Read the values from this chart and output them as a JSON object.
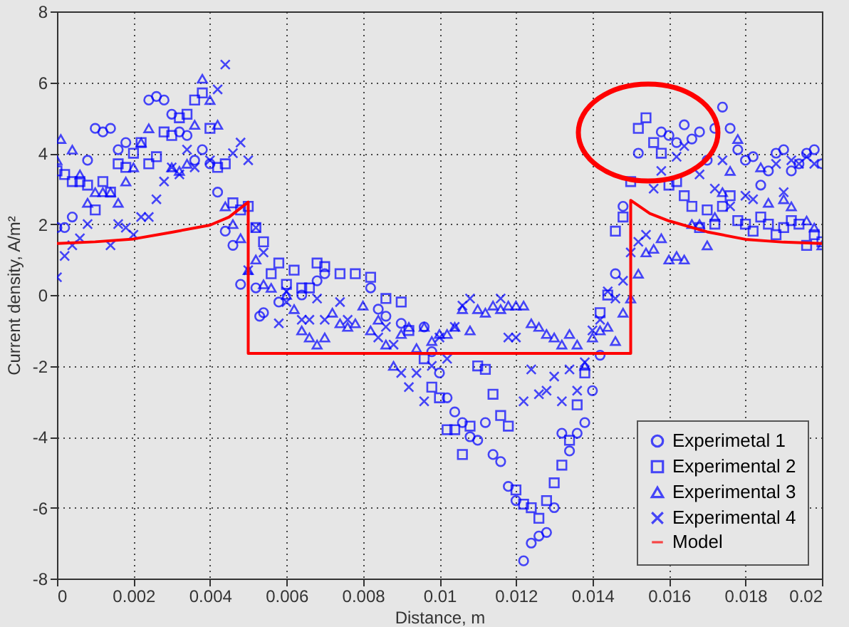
{
  "chart_data": {
    "type": "scatter",
    "xlabel": "Distance, m",
    "ylabel": "Current density, A/m²",
    "xlim": [
      0,
      0.02
    ],
    "ylim": [
      -8,
      8
    ],
    "xticks": [
      0,
      0.002,
      0.004,
      0.006,
      0.008,
      0.01,
      0.012,
      0.014,
      0.016,
      0.018,
      0.02
    ],
    "yticks": [
      -8,
      -6,
      -4,
      -2,
      0,
      2,
      4,
      6,
      8
    ],
    "grid": true,
    "legend": "bottom right",
    "series": [
      {
        "name": "Experimetal 1",
        "marker": "circle",
        "color": "#0000ff",
        "x": [
          0,
          0.0002,
          0.0004,
          0.0008,
          0.001,
          0.0012,
          0.0014,
          0.0016,
          0.0018,
          0.0024,
          0.0026,
          0.0028,
          0.003,
          0.0032,
          0.0034,
          0.0036,
          0.0038,
          0.004,
          0.0042,
          0.0044,
          0.0046,
          0.0048,
          0.0052,
          0.0053,
          0.0054,
          0.0058,
          0.0064,
          0.0068,
          0.007,
          0.0082,
          0.0084,
          0.0086,
          0.009,
          0.0096,
          0.0098,
          0.01,
          0.0102,
          0.0104,
          0.0106,
          0.0108,
          0.011,
          0.0112,
          0.0114,
          0.0116,
          0.0118,
          0.012,
          0.0122,
          0.0124,
          0.0126,
          0.0128,
          0.013,
          0.0132,
          0.0134,
          0.0136,
          0.0138,
          0.014,
          0.0142,
          0.0146,
          0.0148,
          0.0152,
          0.0158,
          0.016,
          0.0162,
          0.0164,
          0.0166,
          0.0168,
          0.017,
          0.0172,
          0.0174,
          0.0176,
          0.0178,
          0.018,
          0.0182,
          0.0184,
          0.0186,
          0.0188,
          0.019,
          0.0192,
          0.0194,
          0.0196,
          0.0198,
          0.02
        ],
        "values": [
          1.9,
          1.9,
          2.2,
          3.8,
          4.7,
          4.6,
          4.7,
          4.1,
          4.3,
          5.5,
          5.6,
          5.5,
          5.1,
          4.6,
          4.5,
          3.8,
          4.1,
          3.7,
          2.9,
          1.8,
          1.4,
          0.3,
          0.2,
          -0.6,
          -0.5,
          -0.2,
          0,
          0.4,
          0.6,
          0.2,
          -0.4,
          -0.6,
          -0.8,
          -0.9,
          -1.6,
          -2.2,
          -2.9,
          -3.3,
          -3.6,
          -4,
          -4.1,
          -3.6,
          -4.5,
          -4.7,
          -5.4,
          -5.8,
          -7.5,
          -7,
          -6.8,
          -6.7,
          -6,
          -3.9,
          -4.4,
          -3.9,
          -3.6,
          -2.7,
          -1.7,
          0.6,
          2.5,
          4,
          4.6,
          4.5,
          4.3,
          4.8,
          4.4,
          4.6,
          3.8,
          4.7,
          5.3,
          4.7,
          4.1,
          3.8,
          3.9,
          3.1,
          3.5,
          4,
          4.1,
          3.5,
          3.7,
          4,
          4.1,
          3.7
        ]
      },
      {
        "name": "Experimental 2",
        "marker": "square",
        "color": "#0000ff",
        "x": [
          0,
          0.0002,
          0.0004,
          0.0006,
          0.0008,
          0.001,
          0.0012,
          0.0014,
          0.0016,
          0.0018,
          0.002,
          0.0022,
          0.0024,
          0.0026,
          0.0028,
          0.003,
          0.0032,
          0.0034,
          0.0036,
          0.0038,
          0.004,
          0.0042,
          0.0044,
          0.0046,
          0.0048,
          0.005,
          0.0052,
          0.0054,
          0.0056,
          0.0058,
          0.006,
          0.0062,
          0.0064,
          0.0066,
          0.0068,
          0.007,
          0.0074,
          0.0078,
          0.0082,
          0.0086,
          0.009,
          0.0092,
          0.0096,
          0.0098,
          0.01,
          0.0102,
          0.0104,
          0.0106,
          0.0108,
          0.011,
          0.0112,
          0.0114,
          0.0116,
          0.0118,
          0.012,
          0.0122,
          0.0124,
          0.0126,
          0.0128,
          0.013,
          0.0132,
          0.0134,
          0.0136,
          0.0138,
          0.0142,
          0.0144,
          0.0146,
          0.0148,
          0.015,
          0.0152,
          0.0154,
          0.0156,
          0.0158,
          0.016,
          0.0162,
          0.0164,
          0.0166,
          0.0168,
          0.017,
          0.0172,
          0.0174,
          0.0176,
          0.0178,
          0.018,
          0.0182,
          0.0184,
          0.0186,
          0.0188,
          0.019,
          0.0192,
          0.0194,
          0.0196,
          0.0198,
          0.02
        ],
        "values": [
          3.5,
          3.4,
          3.2,
          3.2,
          3.1,
          2.4,
          3.2,
          2.9,
          3.7,
          3.6,
          4,
          4.3,
          3.7,
          3.9,
          4.6,
          4.5,
          5,
          5.1,
          5.5,
          5.7,
          4.7,
          3.6,
          3.7,
          2.6,
          2.4,
          2.5,
          1.9,
          1.5,
          0.6,
          0.9,
          0.3,
          0.7,
          0.2,
          0.2,
          0.9,
          0.8,
          0.6,
          0.6,
          0.5,
          -0.1,
          -0.2,
          -1,
          -1.8,
          -2.6,
          -2.9,
          -3.8,
          -3.8,
          -4.5,
          -3.7,
          -2,
          -2.1,
          -2.8,
          -3.4,
          -3.7,
          -5.5,
          -5.9,
          -6,
          -6.3,
          -5.8,
          -5.3,
          -4.8,
          -4.1,
          -3.1,
          -2.2,
          -0.5,
          0,
          1.8,
          2.2,
          3.2,
          4.7,
          5,
          4.3,
          4,
          3.1,
          3.2,
          2.8,
          2.5,
          1.9,
          2.4,
          2,
          2.5,
          2.8,
          2.1,
          2,
          1.8,
          2.2,
          2,
          1.7,
          1.9,
          2.1,
          2,
          1.4,
          1.7,
          1.5
        ]
      },
      {
        "name": "Experimental 3",
        "marker": "triangle",
        "color": "#0000ff",
        "x": [
          0,
          0.0001,
          0.0004,
          0.0006,
          0.0008,
          0.001,
          0.0012,
          0.0014,
          0.0016,
          0.0018,
          0.002,
          0.0022,
          0.0024,
          0.003,
          0.0032,
          0.0034,
          0.0036,
          0.0038,
          0.004,
          0.0042,
          0.0044,
          0.0046,
          0.0048,
          0.005,
          0.0052,
          0.0054,
          0.0056,
          0.006,
          0.0062,
          0.0064,
          0.0066,
          0.0068,
          0.007,
          0.0072,
          0.0074,
          0.0076,
          0.0078,
          0.008,
          0.0082,
          0.0084,
          0.0086,
          0.0088,
          0.009,
          0.0092,
          0.0094,
          0.0096,
          0.0098,
          0.01,
          0.0102,
          0.0104,
          0.0106,
          0.0108,
          0.011,
          0.0112,
          0.0114,
          0.0116,
          0.0118,
          0.012,
          0.0122,
          0.0124,
          0.0126,
          0.0128,
          0.013,
          0.0132,
          0.0134,
          0.0136,
          0.0138,
          0.014,
          0.0142,
          0.0144,
          0.0146,
          0.0148,
          0.015,
          0.0152,
          0.0154,
          0.0156,
          0.0158,
          0.016,
          0.0162,
          0.0164,
          0.0166,
          0.0168,
          0.017,
          0.0172,
          0.0174,
          0.0176,
          0.0178,
          0.0184,
          0.0186,
          0.019,
          0.0192,
          0.0196,
          0.0198,
          0.02
        ],
        "values": [
          3.8,
          4.4,
          4.1,
          3.4,
          2.6,
          2.9,
          2.9,
          2.9,
          2.6,
          3.2,
          3.6,
          4.3,
          4.7,
          3.6,
          3.5,
          3.7,
          4.8,
          6.1,
          5.5,
          4.8,
          2.5,
          2,
          1.6,
          0.7,
          1,
          0.3,
          0.2,
          0,
          -0.4,
          -1,
          -1.2,
          -1.4,
          -1.2,
          -0.5,
          -0.8,
          -0.9,
          -0.8,
          -0.3,
          -1,
          -0.7,
          -1.4,
          -2,
          -1.1,
          -0.9,
          -1.5,
          -0.9,
          -1.3,
          -1.1,
          -1.1,
          -0.9,
          -0.4,
          -1,
          -0.4,
          -0.5,
          -0.3,
          -0.4,
          -0.3,
          -0.3,
          -0.3,
          -0.8,
          -0.9,
          -1.1,
          -1.2,
          -1.4,
          -1.1,
          -1.4,
          -2,
          -1.2,
          -1,
          -0.9,
          -1.3,
          -0.5,
          -0.1,
          0.6,
          1.2,
          1.3,
          1.6,
          1,
          1.1,
          1,
          2,
          2,
          1.4,
          2.2,
          2.9,
          3.5,
          4.4,
          3.6,
          2.6,
          2.7,
          2.5,
          2.1,
          1.9,
          1.4
        ]
      },
      {
        "name": "Experimental 4",
        "marker": "cross",
        "color": "#0000ff",
        "x": [
          0,
          0.0002,
          0.0004,
          0.0006,
          0.0008,
          0.0014,
          0.0016,
          0.0018,
          0.002,
          0.0022,
          0.0024,
          0.0026,
          0.0028,
          0.003,
          0.0032,
          0.0034,
          0.0036,
          0.004,
          0.0042,
          0.0044,
          0.0046,
          0.0048,
          0.005,
          0.005,
          0.0052,
          0.0054,
          0.0058,
          0.006,
          0.006,
          0.0064,
          0.0066,
          0.0068,
          0.007,
          0.0074,
          0.0076,
          0.0084,
          0.0086,
          0.0088,
          0.009,
          0.0092,
          0.0094,
          0.0096,
          0.0098,
          0.01,
          0.0102,
          0.0104,
          0.0106,
          0.0108,
          0.0116,
          0.0118,
          0.012,
          0.0122,
          0.0124,
          0.0126,
          0.0128,
          0.013,
          0.0132,
          0.0134,
          0.0136,
          0.0138,
          0.014,
          0.0142,
          0.0144,
          0.0146,
          0.0148,
          0.015,
          0.0152,
          0.0154,
          0.0156,
          0.0158,
          0.0162,
          0.0164,
          0.0168,
          0.0172,
          0.0174,
          0.0176,
          0.018,
          0.0182,
          0.0188,
          0.019,
          0.0192,
          0.0194,
          0.0196,
          0.0198
        ],
        "values": [
          0.5,
          1.1,
          1.4,
          1.6,
          2,
          1.4,
          2,
          1.9,
          1.7,
          2.2,
          2.2,
          2.7,
          3.2,
          3.6,
          3.4,
          4.1,
          3.6,
          3.8,
          5.8,
          6.5,
          4,
          4.3,
          3.8,
          0.7,
          1.9,
          1.2,
          -0.8,
          0.1,
          -0.2,
          -0.7,
          -0.7,
          -0.1,
          -0.7,
          -0.2,
          -0.7,
          -1.2,
          -0.9,
          -1.4,
          -2.2,
          -2.6,
          -2.2,
          -3,
          -2,
          -1.2,
          -1.8,
          -0.9,
          -0.3,
          -0.1,
          -0.1,
          -1.2,
          -1.2,
          -3,
          -2.1,
          -2.8,
          -2.7,
          -2.3,
          -3,
          -2.1,
          -2.7,
          -1.9,
          -1,
          -0.7,
          0.1,
          -0.1,
          0.4,
          1.2,
          1.5,
          1.7,
          3,
          3.5,
          3.9,
          4.2,
          3.4,
          3,
          3.8,
          2.5,
          2.8,
          2.7,
          3.7,
          2.9,
          3.8,
          3.7,
          3.9,
          3.7
        ]
      },
      {
        "name": "Model",
        "type": "line",
        "marker": "none",
        "line_style": "solid",
        "color": "#ff0000",
        "x": [
          0,
          0.001,
          0.002,
          0.003,
          0.004,
          0.0045,
          0.005,
          0.005,
          0.015,
          0.015,
          0.0155,
          0.016,
          0.017,
          0.018,
          0.019,
          0.02
        ],
        "values": [
          1.45,
          1.5,
          1.58,
          1.77,
          1.97,
          2.2,
          2.62,
          -1.65,
          -1.65,
          2.67,
          2.3,
          2.09,
          1.78,
          1.57,
          1.49,
          1.45
        ]
      }
    ]
  }
}
